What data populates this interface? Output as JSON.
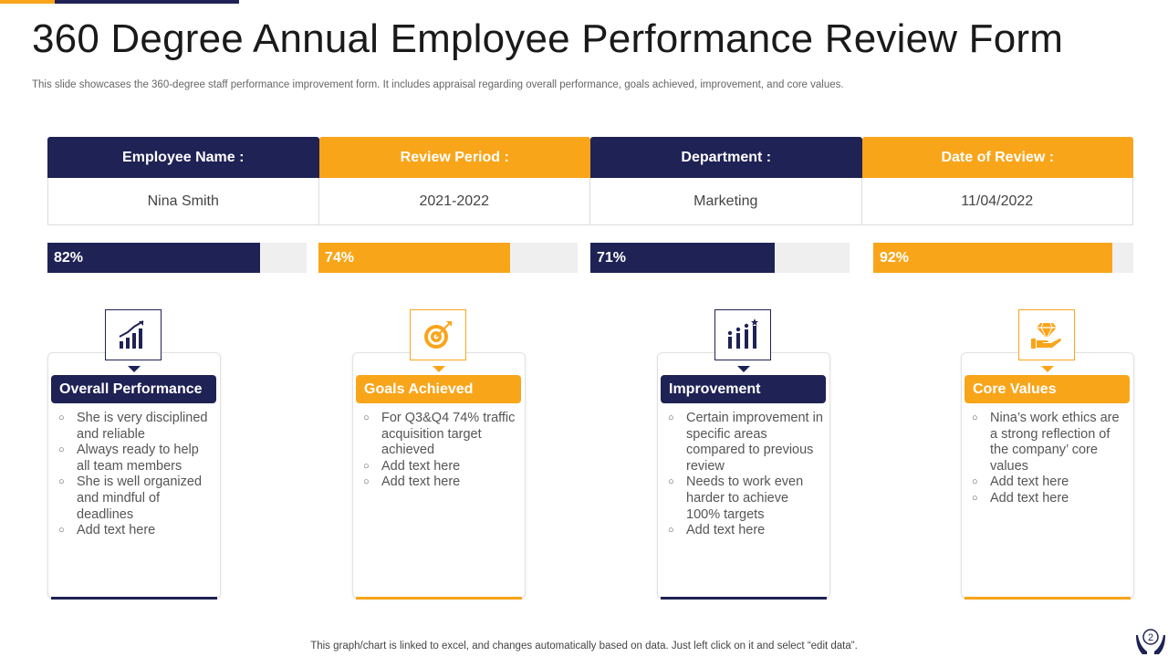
{
  "title": "360 Degree Annual Employee Performance Review Form",
  "subtitle": "This slide showcases the 360-degree staff performance improvement form. It includes appraisal regarding overall performance, goals achieved, improvement, and core values.",
  "info": [
    {
      "header": "Employee Name :",
      "value": "Nina Smith"
    },
    {
      "header": "Review Period :",
      "value": "2021-2022"
    },
    {
      "header": "Department :",
      "value": "Marketing"
    },
    {
      "header": "Date of Review :",
      "value": "11/04/2022"
    }
  ],
  "bars": [
    {
      "label": "82%",
      "value": 82
    },
    {
      "label": "74%",
      "value": 74
    },
    {
      "label": "71%",
      "value": 71
    },
    {
      "label": "92%",
      "value": 92
    }
  ],
  "cards": [
    {
      "title": "Overall Performance",
      "icon": "growth-chart-icon",
      "items": [
        "She is very disciplined and reliable",
        "Always ready to help all team members",
        "She is well organized and mindful of deadlines",
        "Add text here"
      ]
    },
    {
      "title": "Goals Achieved",
      "icon": "target-arrow-icon",
      "items": [
        "For Q3&Q4 74% traffic acquisition target achieved",
        "Add text here",
        "Add text here"
      ]
    },
    {
      "title": "Improvement",
      "icon": "team-growth-icon",
      "items": [
        "Certain improvement in specific areas compared to previous review",
        "Needs to work even harder to achieve 100% targets",
        "Add text here"
      ]
    },
    {
      "title": "Core Values",
      "icon": "diamond-hand-icon",
      "items": [
        "Nina’s work ethics are a strong reflection of the company’ core values",
        "Add text here",
        "Add text here"
      ]
    }
  ],
  "footer": "This graph/chart is linked to excel,  and changes automatically based on data. Just left click on it and select “edit data”.",
  "page_number": "2",
  "colors": {
    "navy": "#1F2254",
    "gold": "#F9A51A"
  }
}
